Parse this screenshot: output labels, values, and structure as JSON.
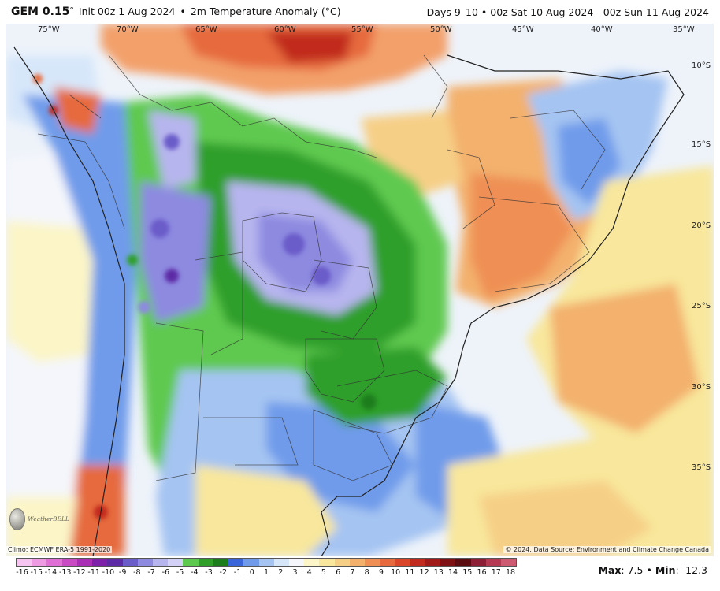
{
  "header": {
    "model": "GEM 0.15",
    "degree": "°",
    "init": "Init 00z 1 Aug 2024",
    "separator": "•",
    "field": "2m Temperature Anomaly (°C)",
    "valid": "Days 9–10 • 00z Sat 10 Aug 2024—00z Sun 11 Aug 2024"
  },
  "map": {
    "lon_labels": [
      "75°W",
      "70°W",
      "65°W",
      "60°W",
      "55°W",
      "50°W",
      "45°W",
      "40°W",
      "35°W"
    ],
    "lat_labels": [
      "10°S",
      "15°S",
      "20°S",
      "25°S",
      "30°S",
      "35°S"
    ]
  },
  "footer": {
    "climo": "Climo: ECMWF ERA-5 1991-2020",
    "credit": "© 2024. Data Source: Environment and Climate Change Canada",
    "logo_text": "WeatherBELL"
  },
  "legend": {
    "ticks": [
      "-16",
      "-15",
      "-14",
      "-13",
      "-12",
      "-11",
      "-10",
      "-9",
      "-8",
      "-7",
      "-6",
      "-5",
      "-4",
      "-3",
      "-2",
      "-1",
      "0",
      "1",
      "2",
      "3",
      "4",
      "5",
      "6",
      "7",
      "8",
      "9",
      "10",
      "11",
      "12",
      "13",
      "14",
      "15",
      "16",
      "17",
      "18"
    ],
    "colors": [
      "#f7c6f0",
      "#ee9be4",
      "#e070d6",
      "#c84bc4",
      "#a92fb5",
      "#7d22a8",
      "#5d2ba6",
      "#6a5cc9",
      "#8d8ae0",
      "#b7b5ee",
      "#d3d1f6",
      "#5ec94f",
      "#2f9f2a",
      "#1d7d1d",
      "#3a66d9",
      "#6f9bea",
      "#a5c4f2",
      "#d7e7fa",
      "#f4f6fb",
      "#fbf5c8",
      "#f8e79c",
      "#f6cf86",
      "#f3b16d",
      "#ef8f55",
      "#e66a3d",
      "#d9462a",
      "#c12a1e",
      "#9f1a18",
      "#7d1114",
      "#5a0c10",
      "#8c1f36",
      "#b33a52",
      "#cc5a70"
    ],
    "max_label": "Max",
    "max_value": "7.5",
    "min_label": "Min",
    "min_value": "-12.3",
    "separator": "•"
  }
}
